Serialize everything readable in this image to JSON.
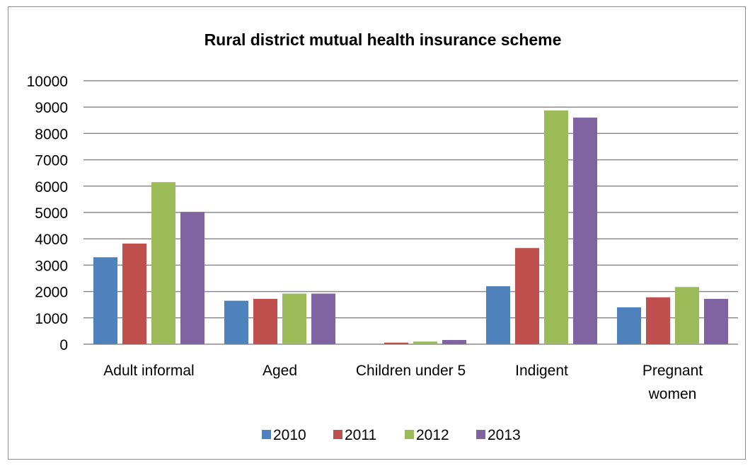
{
  "chart_data": {
    "type": "bar",
    "title": "Rural district mutual health insurance scheme",
    "categories": [
      [
        "Adult informal"
      ],
      [
        "Aged"
      ],
      [
        "Children under 5"
      ],
      [
        "Indigent"
      ],
      [
        "Pregnant",
        "women"
      ]
    ],
    "series": [
      {
        "name": "2010",
        "color": "#4F81BD",
        "values": [
          3300,
          1650,
          0,
          2200,
          1400
        ]
      },
      {
        "name": "2011",
        "color": "#C0504D",
        "values": [
          3820,
          1720,
          60,
          3650,
          1780
        ]
      },
      {
        "name": "2012",
        "color": "#9BBB59",
        "values": [
          6150,
          1920,
          100,
          8870,
          2170
        ]
      },
      {
        "name": "2013",
        "color": "#8064A2",
        "values": [
          5020,
          1920,
          160,
          8600,
          1720
        ]
      }
    ],
    "ylim": [
      0,
      10000
    ],
    "yticks": [
      0,
      1000,
      2000,
      3000,
      4000,
      5000,
      6000,
      7000,
      8000,
      9000,
      10000
    ],
    "grid": true,
    "legend_position": "bottom"
  }
}
